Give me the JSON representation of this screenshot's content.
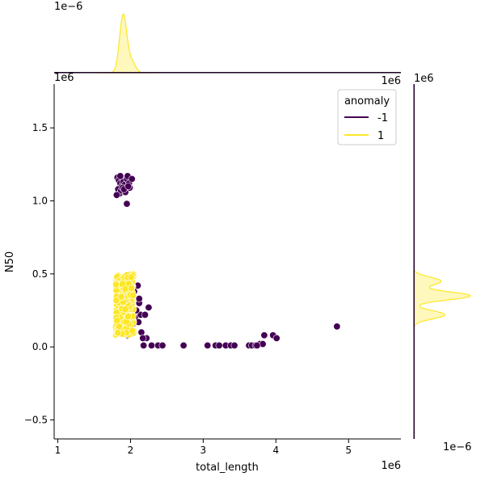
{
  "chart_data": {
    "type": "scatter",
    "kind": "jointplot",
    "xlabel": "total_length",
    "ylabel": "N50",
    "x_offset_label": "1e6",
    "y_offset_label": "1e6",
    "top_marginal_offset_label": "1e−6",
    "right_marginal_offset_label": "1e−6",
    "xlim": [
      0.95,
      5.72
    ],
    "ylim": [
      -0.63,
      1.8
    ],
    "xticks": [
      1,
      2,
      3,
      4,
      5
    ],
    "yticks": [
      -0.5,
      0.0,
      0.5,
      1.0,
      1.5
    ],
    "xtick_labels": [
      "1",
      "2",
      "3",
      "4",
      "5"
    ],
    "ytick_labels": [
      "−0.5",
      "0.0",
      "0.5",
      "1.0",
      "1.5"
    ],
    "legend": {
      "title": "anomaly",
      "position": "top-right",
      "entries": [
        {
          "label": "-1",
          "color": "#440154"
        },
        {
          "label": "1",
          "color": "#fde725"
        }
      ]
    },
    "series": [
      {
        "name": "-1",
        "color": "#440154",
        "points": [
          [
            1.82,
            1.16
          ],
          [
            1.84,
            1.14
          ],
          [
            1.86,
            1.12
          ],
          [
            1.88,
            1.1
          ],
          [
            1.83,
            1.08
          ],
          [
            1.85,
            1.05
          ],
          [
            1.9,
            1.13
          ],
          [
            1.92,
            1.11
          ],
          [
            1.87,
            1.07
          ],
          [
            1.95,
            1.15
          ],
          [
            1.98,
            1.12
          ],
          [
            1.96,
            1.17
          ],
          [
            2.02,
            1.15
          ],
          [
            1.89,
            1.09
          ],
          [
            1.81,
            1.04
          ],
          [
            1.93,
            1.06
          ],
          [
            1.99,
            1.09
          ],
          [
            1.86,
            1.17
          ],
          [
            1.91,
            1.08
          ],
          [
            1.97,
            1.1
          ],
          [
            1.95,
            0.98
          ],
          [
            2.1,
            0.42
          ],
          [
            2.05,
            0.38
          ],
          [
            2.12,
            0.3
          ],
          [
            2.06,
            0.2
          ],
          [
            2.14,
            0.22
          ],
          [
            2.2,
            0.22
          ],
          [
            2.25,
            0.27
          ],
          [
            2.12,
            0.33
          ],
          [
            2.08,
            0.25
          ],
          [
            2.15,
            0.1
          ],
          [
            2.22,
            0.06
          ],
          [
            2.17,
            0.06
          ],
          [
            2.02,
            0.11
          ],
          [
            1.96,
            0.08
          ],
          [
            2.04,
            0.16
          ],
          [
            1.98,
            0.14
          ],
          [
            2.01,
            0.28
          ],
          [
            2.11,
            0.17
          ],
          [
            2.18,
            0.01
          ],
          [
            2.29,
            0.01
          ],
          [
            2.38,
            0.01
          ],
          [
            2.44,
            0.01
          ],
          [
            2.73,
            0.01
          ],
          [
            3.06,
            0.01
          ],
          [
            3.17,
            0.01
          ],
          [
            3.22,
            0.01
          ],
          [
            3.31,
            0.01
          ],
          [
            3.38,
            0.01
          ],
          [
            3.43,
            0.01
          ],
          [
            3.63,
            0.01
          ],
          [
            3.67,
            0.01
          ],
          [
            3.72,
            0.01
          ],
          [
            3.78,
            0.02
          ],
          [
            3.82,
            0.02
          ],
          [
            3.74,
            0.01
          ],
          [
            3.84,
            0.08
          ],
          [
            3.96,
            0.08
          ],
          [
            4.01,
            0.06
          ],
          [
            4.84,
            0.14
          ]
        ]
      },
      {
        "name": "1",
        "color": "#fde725",
        "cluster": {
          "x_range": [
            1.8,
            2.04
          ],
          "y_range": [
            0.08,
            0.5
          ],
          "count": 320
        }
      }
    ],
    "top_marginal": {
      "series": [
        {
          "name": "1",
          "color": "#fde725",
          "peak_x": 1.9,
          "peak_width": 0.05
        },
        {
          "name": "-1",
          "color": "#440154",
          "flat": true
        }
      ]
    },
    "right_marginal": {
      "series": [
        {
          "name": "1",
          "color": "#fde725",
          "y_range": [
            0.12,
            0.52
          ],
          "peaks": [
            [
              0.45,
              0.48
            ],
            [
              0.35,
              1.0
            ],
            [
              0.22,
              0.55
            ]
          ]
        },
        {
          "name": "-1",
          "color": "#440154",
          "flat": true
        }
      ]
    }
  }
}
